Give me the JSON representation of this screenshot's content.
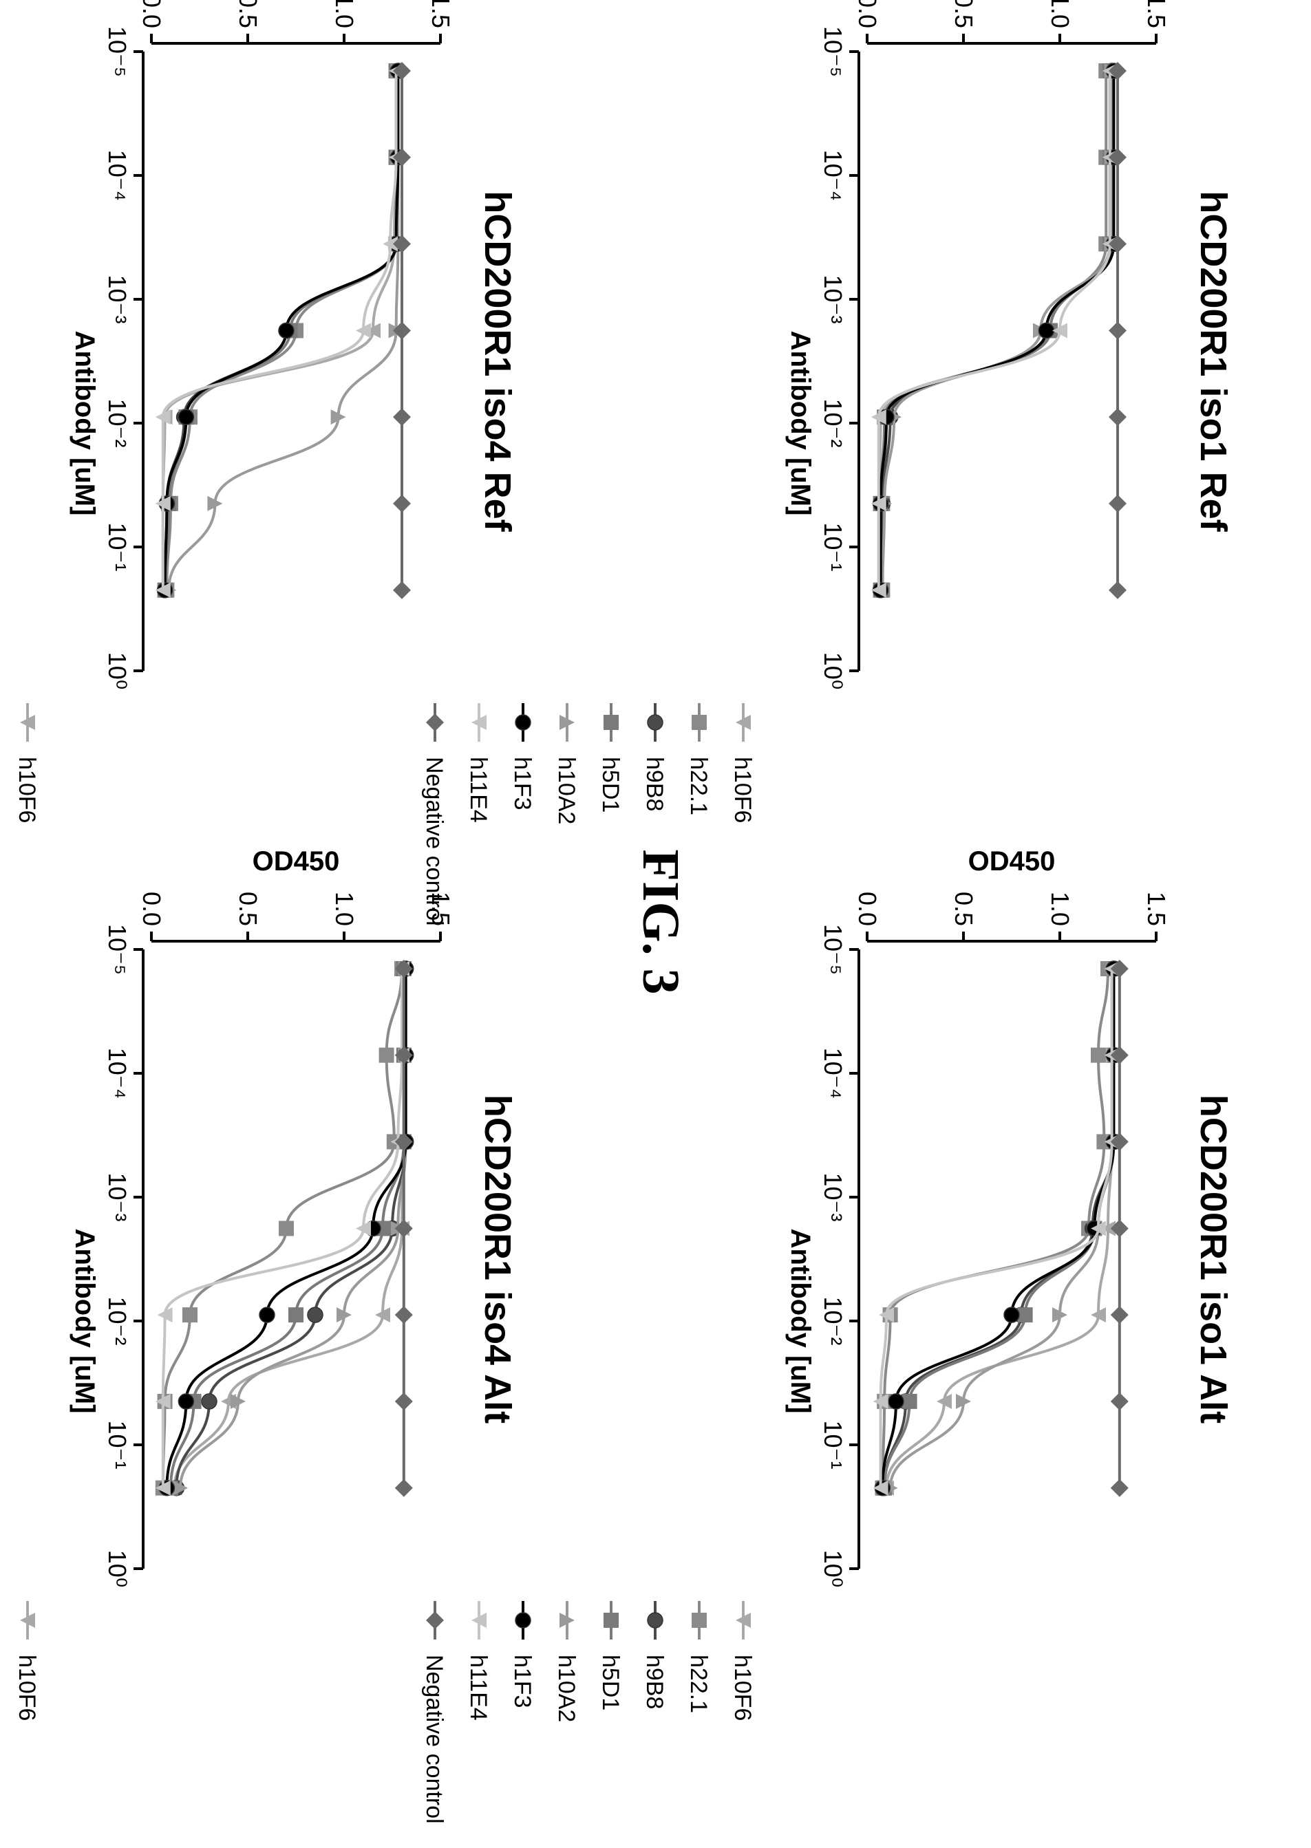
{
  "figure": {
    "title": "FIG. 3"
  },
  "colors": {
    "h10F6": "#a8a8a8",
    "h22.1": "#8a8a8a",
    "h9B8": "#4a4a4a",
    "h5D1": "#7a7a7a",
    "h10A2": "#9a9a9a",
    "h1F3": "#000000",
    "h11E4": "#c4c4c4",
    "Negative control": "#6a6a6a"
  },
  "markers": {
    "h10F6": "triangle-down",
    "h22.1": "square",
    "h9B8": "circle",
    "h5D1": "square",
    "h10A2": "triangle-up",
    "h1F3": "circle",
    "h11E4": "triangle-down",
    "Negative control": "diamond"
  },
  "chart_data": [
    {
      "type": "line",
      "panel": "top-left",
      "title": "hCD200R1 iso4 Ref",
      "xlabel": "Antibody [uM]",
      "ylabel": "OD450",
      "xscale": "log",
      "xlim": [
        1e-05,
        1
      ],
      "ylim": [
        0,
        1.5
      ],
      "x_ticks": [
        "10⁻⁵",
        "10⁻⁴",
        "10⁻³",
        "10⁻²",
        "10⁻¹",
        "10⁰"
      ],
      "y_ticks": [
        "0.0",
        "0.5",
        "1.0",
        "1.5"
      ],
      "legend_position": "right",
      "x": [
        1.43e-05,
        7.14e-05,
        0.000357,
        0.00179,
        0.00893,
        0.0446,
        0.223
      ],
      "series": [
        {
          "name": "h10F6",
          "values": [
            1.27,
            1.27,
            1.26,
            1.15,
            0.07,
            0.06,
            0.06
          ]
        },
        {
          "name": "h22.1",
          "values": [
            1.27,
            1.27,
            1.27,
            0.75,
            0.2,
            0.1,
            0.08
          ]
        },
        {
          "name": "h9B8",
          "values": [
            1.28,
            1.28,
            1.27,
            0.7,
            0.17,
            0.08,
            0.07
          ]
        },
        {
          "name": "h5D1",
          "values": [
            1.27,
            1.27,
            1.27,
            0.72,
            0.18,
            0.09,
            0.07
          ]
        },
        {
          "name": "h10A2",
          "values": [
            1.28,
            1.28,
            1.28,
            1.27,
            0.97,
            0.33,
            0.09
          ]
        },
        {
          "name": "h1F3",
          "values": [
            1.28,
            1.28,
            1.27,
            0.7,
            0.18,
            0.08,
            0.07
          ]
        },
        {
          "name": "h11E4",
          "values": [
            1.27,
            1.27,
            1.24,
            1.1,
            0.06,
            0.06,
            0.06
          ]
        },
        {
          "name": "Negative control",
          "values": [
            1.3,
            1.3,
            1.3,
            1.3,
            1.3,
            1.3,
            1.3
          ]
        }
      ]
    },
    {
      "type": "line",
      "panel": "top-right",
      "title": "hCD200R1 iso1 Ref",
      "xlabel": "Antibody [uM]",
      "ylabel": "OD450",
      "xscale": "log",
      "xlim": [
        1e-05,
        1
      ],
      "ylim": [
        0,
        1.5
      ],
      "x_ticks": [
        "10⁻⁵",
        "10⁻⁴",
        "10⁻³",
        "10⁻²",
        "10⁻¹",
        "10⁰"
      ],
      "y_ticks": [
        "0.0",
        "0.5",
        "1.0",
        "1.5"
      ],
      "legend_position": "right",
      "x": [
        1.43e-05,
        7.14e-05,
        0.000357,
        0.00179,
        0.00893,
        0.0446,
        0.223
      ],
      "series": [
        {
          "name": "h10F6",
          "values": [
            1.26,
            1.26,
            1.26,
            0.95,
            0.07,
            0.06,
            0.06
          ]
        },
        {
          "name": "h22.1",
          "values": [
            1.24,
            1.24,
            1.24,
            0.95,
            0.1,
            0.08,
            0.08
          ]
        },
        {
          "name": "h9B8",
          "values": [
            1.27,
            1.27,
            1.27,
            0.93,
            0.12,
            0.08,
            0.07
          ]
        },
        {
          "name": "h5D1",
          "values": [
            1.26,
            1.26,
            1.26,
            0.95,
            0.09,
            0.07,
            0.07
          ]
        },
        {
          "name": "h10A2",
          "values": [
            1.27,
            1.27,
            1.27,
            0.9,
            0.14,
            0.09,
            0.08
          ]
        },
        {
          "name": "h1F3",
          "values": [
            1.28,
            1.28,
            1.28,
            0.93,
            0.1,
            0.07,
            0.07
          ]
        },
        {
          "name": "h11E4",
          "values": [
            1.26,
            1.26,
            1.26,
            1.0,
            0.06,
            0.06,
            0.06
          ]
        },
        {
          "name": "Negative control",
          "values": [
            1.3,
            1.3,
            1.3,
            1.3,
            1.3,
            1.3,
            1.3
          ]
        }
      ]
    },
    {
      "type": "line",
      "panel": "bottom-left",
      "title": "hCD200R1 iso4 Alt",
      "xlabel": "Antibody [uM]",
      "ylabel": "OD450",
      "xscale": "log",
      "xlim": [
        1e-05,
        1
      ],
      "ylim": [
        0,
        1.5
      ],
      "x_ticks": [
        "10⁻⁵",
        "10⁻⁴",
        "10⁻³",
        "10⁻²",
        "10⁻¹",
        "10⁰"
      ],
      "y_ticks": [
        "0.0",
        "0.5",
        "1.0",
        "1.5"
      ],
      "legend_position": "right",
      "x": [
        1.43e-05,
        7.14e-05,
        0.000357,
        0.00179,
        0.00893,
        0.0446,
        0.223
      ],
      "series": [
        {
          "name": "h10F6",
          "values": [
            1.31,
            1.31,
            1.31,
            1.3,
            1.2,
            0.4,
            0.12
          ]
        },
        {
          "name": "h22.1",
          "values": [
            1.3,
            1.22,
            1.26,
            0.7,
            0.2,
            0.07,
            0.06
          ]
        },
        {
          "name": "h9B8",
          "values": [
            1.32,
            1.32,
            1.32,
            1.25,
            0.85,
            0.3,
            0.13
          ]
        },
        {
          "name": "h5D1",
          "values": [
            1.31,
            1.31,
            1.31,
            1.2,
            0.75,
            0.22,
            0.1
          ]
        },
        {
          "name": "h10A2",
          "values": [
            1.32,
            1.32,
            1.32,
            1.28,
            1.0,
            0.45,
            0.15
          ]
        },
        {
          "name": "h1F3",
          "values": [
            1.32,
            1.32,
            1.32,
            1.15,
            0.6,
            0.18,
            0.08
          ]
        },
        {
          "name": "h11E4",
          "values": [
            1.3,
            1.3,
            1.28,
            1.1,
            0.07,
            0.06,
            0.06
          ]
        },
        {
          "name": "Negative control",
          "values": [
            1.31,
            1.31,
            1.31,
            1.31,
            1.31,
            1.31,
            1.31
          ]
        }
      ]
    },
    {
      "type": "line",
      "panel": "bottom-right",
      "title": "hCD200R1 iso1 Alt",
      "xlabel": "Antibody [uM]",
      "ylabel": "OD450",
      "xscale": "log",
      "xlim": [
        1e-05,
        1
      ],
      "ylim": [
        0,
        1.5
      ],
      "x_ticks": [
        "10⁻⁵",
        "10⁻⁴",
        "10⁻³",
        "10⁻²",
        "10⁻¹",
        "10⁰"
      ],
      "y_ticks": [
        "0.0",
        "0.5",
        "1.0",
        "1.5"
      ],
      "legend_position": "right",
      "x": [
        1.43e-05,
        7.14e-05,
        0.000357,
        0.00179,
        0.00893,
        0.0446,
        0.223
      ],
      "series": [
        {
          "name": "h10F6",
          "values": [
            1.27,
            1.27,
            1.27,
            1.25,
            1.2,
            0.4,
            0.1
          ]
        },
        {
          "name": "h22.1",
          "values": [
            1.25,
            1.2,
            1.23,
            1.15,
            0.12,
            0.09,
            0.08
          ]
        },
        {
          "name": "h9B8",
          "values": [
            1.28,
            1.28,
            1.28,
            1.17,
            0.8,
            0.2,
            0.09
          ]
        },
        {
          "name": "h5D1",
          "values": [
            1.28,
            1.28,
            1.28,
            1.18,
            0.82,
            0.22,
            0.09
          ]
        },
        {
          "name": "h10A2",
          "values": [
            1.28,
            1.28,
            1.28,
            1.2,
            1.0,
            0.5,
            0.12
          ]
        },
        {
          "name": "h1F3",
          "values": [
            1.28,
            1.28,
            1.28,
            1.18,
            0.75,
            0.15,
            0.08
          ]
        },
        {
          "name": "h11E4",
          "values": [
            1.27,
            1.27,
            1.27,
            1.2,
            0.1,
            0.07,
            0.07
          ]
        },
        {
          "name": "Negative control",
          "values": [
            1.31,
            1.31,
            1.31,
            1.31,
            1.31,
            1.31,
            1.31
          ]
        }
      ]
    }
  ]
}
